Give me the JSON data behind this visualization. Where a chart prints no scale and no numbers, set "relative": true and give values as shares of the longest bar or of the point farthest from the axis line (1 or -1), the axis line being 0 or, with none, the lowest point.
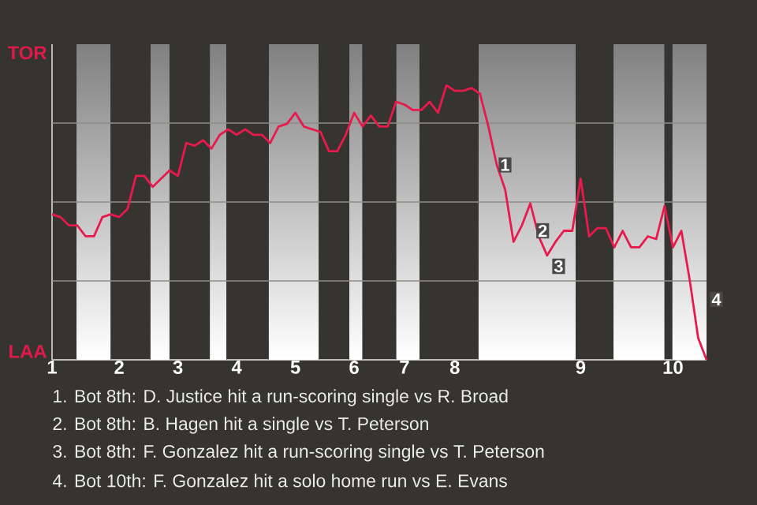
{
  "chart_data": {
    "type": "line",
    "color": "#e8194b",
    "relative": true,
    "categories": [
      "1",
      null,
      null,
      null,
      null,
      null,
      null,
      null,
      "2",
      null,
      null,
      null,
      null,
      null,
      null,
      "3",
      null,
      null,
      null,
      null,
      null,
      null,
      "4",
      null,
      null,
      null,
      null,
      null,
      null,
      "5",
      null,
      null,
      null,
      null,
      null,
      null,
      "6",
      null,
      null,
      null,
      null,
      null,
      "7",
      null,
      null,
      null,
      null,
      null,
      "8",
      null,
      null,
      null,
      null,
      null,
      null,
      null,
      null,
      null,
      null,
      null,
      null,
      null,
      null,
      "9",
      null,
      null,
      null,
      null,
      null,
      null,
      null,
      null,
      null,
      null,
      "10",
      null,
      null,
      null,
      null
    ],
    "values": [
      0.53,
      0.52,
      0.49,
      0.49,
      0.45,
      0.45,
      0.52,
      0.53,
      0.52,
      0.55,
      0.67,
      0.67,
      0.63,
      0.66,
      0.69,
      0.67,
      0.79,
      0.78,
      0.8,
      0.77,
      0.82,
      0.84,
      0.82,
      0.84,
      0.82,
      0.82,
      0.79,
      0.85,
      0.86,
      0.9,
      0.85,
      0.84,
      0.83,
      0.76,
      0.76,
      0.82,
      0.9,
      0.85,
      0.89,
      0.85,
      0.85,
      0.94,
      0.93,
      0.91,
      0.91,
      0.94,
      0.9,
      1,
      0.98,
      0.98,
      0.99,
      0.97,
      0.85,
      0.71,
      0.62,
      0.43,
      0.49,
      0.57,
      0.45,
      0.38,
      0.43,
      0.47,
      0.47,
      0.66,
      0.45,
      0.48,
      0.48,
      0.41,
      0.47,
      0.41,
      0.41,
      0.45,
      0.44,
      0.56,
      0.41,
      0.47,
      0.29,
      0.08,
      0
    ],
    "grid": "y",
    "marker": "none",
    "line_style": "solid",
    "annotations": [
      "TOR",
      "LAA",
      "1",
      "2",
      "3",
      "4",
      "1. Bot 8th: D. Justice hit a run-scoring single vs R. Broad",
      "2. Bot 8th: B. Hagen hit a single vs T. Peterson",
      "3. Bot 8th: F. Gonzalez hit a run-scoring single vs T. Peterson",
      "4. Bot 10th: F. Gonzalez hit a solo home run vs E. Evans"
    ]
  }
}
